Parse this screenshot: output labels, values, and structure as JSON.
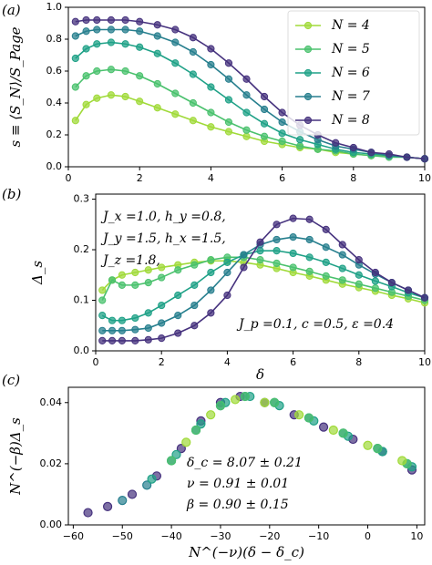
{
  "chart_data": [
    {
      "type": "line",
      "label": "(a)",
      "ylabel": "s ≡ ⟨S_N⟩/S_Page",
      "legend": "upper right",
      "xlim": [
        0,
        10
      ],
      "xticks": [
        0,
        2,
        4,
        6,
        8,
        10
      ],
      "ylim": [
        0,
        1.0
      ],
      "yticks": [
        {
          "value": 0,
          "label": "0.0"
        },
        0.2,
        0.4,
        0.6,
        0.8,
        {
          "value": 1.0,
          "label": "1.0"
        }
      ],
      "x": [
        0.2,
        0.5,
        0.8,
        1.2,
        1.6,
        2.0,
        2.5,
        3.0,
        3.5,
        4.0,
        4.5,
        5.0,
        5.5,
        6.0,
        6.5,
        7.0,
        7.5,
        8.0,
        8.5,
        9.0,
        9.5,
        10.0
      ],
      "series": [
        {
          "name": "N = 4",
          "color": "#a0da39",
          "values": [
            0.29,
            0.39,
            0.43,
            0.45,
            0.44,
            0.41,
            0.37,
            0.33,
            0.29,
            0.25,
            0.22,
            0.19,
            0.16,
            0.14,
            0.12,
            0.11,
            0.09,
            0.08,
            0.07,
            0.07,
            0.06,
            0.05
          ]
        },
        {
          "name": "N = 5",
          "color": "#4ac16d",
          "values": [
            0.5,
            0.57,
            0.6,
            0.61,
            0.6,
            0.57,
            0.52,
            0.46,
            0.4,
            0.34,
            0.28,
            0.23,
            0.19,
            0.16,
            0.13,
            0.11,
            0.1,
            0.08,
            0.07,
            0.06,
            0.06,
            0.05
          ]
        },
        {
          "name": "N = 6",
          "color": "#1fa187",
          "values": [
            0.68,
            0.74,
            0.77,
            0.78,
            0.77,
            0.75,
            0.71,
            0.65,
            0.58,
            0.5,
            0.42,
            0.34,
            0.27,
            0.21,
            0.17,
            0.14,
            0.11,
            0.09,
            0.08,
            0.07,
            0.06,
            0.05
          ]
        },
        {
          "name": "N = 7",
          "color": "#277f8e",
          "values": [
            0.82,
            0.85,
            0.86,
            0.86,
            0.86,
            0.85,
            0.82,
            0.78,
            0.72,
            0.64,
            0.55,
            0.45,
            0.36,
            0.28,
            0.22,
            0.17,
            0.13,
            0.11,
            0.09,
            0.07,
            0.06,
            0.05
          ]
        },
        {
          "name": "N = 8",
          "color": "#46327e",
          "values": [
            0.91,
            0.92,
            0.92,
            0.92,
            0.92,
            0.91,
            0.89,
            0.86,
            0.81,
            0.74,
            0.65,
            0.55,
            0.44,
            0.34,
            0.26,
            0.2,
            0.15,
            0.12,
            0.09,
            0.08,
            0.06,
            0.05
          ]
        }
      ]
    },
    {
      "type": "line",
      "label": "(b)",
      "xlabel": "δ",
      "ylabel": "Δ_s",
      "annotations": [
        "J_x =1.0,   h_y =0.8,",
        "J_y =1.5,   h_x =1.5,",
        "J_z =1.8,",
        "J_p =0.1,   c =0.5,   ε =0.4"
      ],
      "xlim": [
        0,
        10
      ],
      "xticks": [
        0,
        2,
        4,
        6,
        8,
        10
      ],
      "ylim": [
        0,
        0.31
      ],
      "yticks": [
        {
          "value": 0,
          "label": "0.0"
        },
        0.1,
        0.2,
        0.3
      ],
      "x": [
        0.2,
        0.5,
        0.8,
        1.2,
        1.6,
        2.0,
        2.5,
        3.0,
        3.5,
        4.0,
        4.5,
        5.0,
        5.5,
        6.0,
        6.5,
        7.0,
        7.5,
        8.0,
        8.5,
        9.0,
        9.5,
        10.0
      ],
      "series": [
        {
          "color": "#a0da39",
          "values": [
            0.12,
            0.14,
            0.15,
            0.155,
            0.16,
            0.165,
            0.17,
            0.175,
            0.178,
            0.178,
            0.175,
            0.17,
            0.163,
            0.155,
            0.148,
            0.14,
            0.132,
            0.125,
            0.118,
            0.11,
            0.103,
            0.095
          ]
        },
        {
          "color": "#4ac16d",
          "values": [
            0.1,
            0.14,
            0.13,
            0.13,
            0.135,
            0.145,
            0.16,
            0.17,
            0.18,
            0.185,
            0.185,
            0.18,
            0.173,
            0.165,
            0.157,
            0.148,
            0.14,
            0.132,
            0.124,
            0.116,
            0.108,
            0.1
          ]
        },
        {
          "color": "#1fa187",
          "values": [
            0.07,
            0.06,
            0.06,
            0.065,
            0.075,
            0.09,
            0.11,
            0.13,
            0.155,
            0.175,
            0.19,
            0.198,
            0.198,
            0.193,
            0.185,
            0.175,
            0.163,
            0.15,
            0.138,
            0.127,
            0.115,
            0.105
          ]
        },
        {
          "color": "#277f8e",
          "values": [
            0.04,
            0.04,
            0.04,
            0.042,
            0.045,
            0.055,
            0.07,
            0.09,
            0.12,
            0.155,
            0.19,
            0.21,
            0.22,
            0.225,
            0.22,
            0.205,
            0.19,
            0.17,
            0.152,
            0.135,
            0.12,
            0.105
          ]
        },
        {
          "color": "#46327e",
          "values": [
            0.02,
            0.02,
            0.02,
            0.02,
            0.022,
            0.025,
            0.035,
            0.05,
            0.075,
            0.11,
            0.165,
            0.215,
            0.25,
            0.262,
            0.26,
            0.24,
            0.21,
            0.18,
            0.155,
            0.135,
            0.12,
            0.105
          ]
        }
      ]
    },
    {
      "type": "scatter",
      "label": "(c)",
      "xlabel": "N^(−ν)(δ − δ_c)",
      "ylabel": "N^(−β)Δ_s",
      "annotations": [
        "δ_c = 8.07 ± 0.21",
        "ν = 0.91 ± 0.01",
        "β = 0.90 ± 0.15"
      ],
      "xlim": [
        -61,
        11.6
      ],
      "xticks": [
        {
          "value": -60,
          "label": "−60"
        },
        {
          "value": -50,
          "label": "−50"
        },
        {
          "value": -40,
          "label": "−40"
        },
        {
          "value": -30,
          "label": "−30"
        },
        {
          "value": -20,
          "label": "−20"
        },
        {
          "value": -10,
          "label": "−10"
        },
        0,
        10
      ],
      "ylim": [
        0,
        0.045
      ],
      "yticks": [
        {
          "value": 0,
          "label": "0.00"
        },
        {
          "value": 0.02,
          "label": "0.02"
        },
        {
          "value": 0.04,
          "label": "0.04"
        }
      ],
      "series": [
        {
          "color": "#46327e",
          "x": [
            -57,
            -53,
            -48,
            -43,
            -38,
            -34,
            -30,
            -26,
            -21,
            -15,
            -9,
            -3,
            3,
            9
          ],
          "values": [
            0.004,
            0.006,
            0.01,
            0.016,
            0.025,
            0.034,
            0.04,
            0.042,
            0.04,
            0.036,
            0.032,
            0.028,
            0.024,
            0.018
          ]
        },
        {
          "color": "#277f8e",
          "x": [
            -50,
            -45,
            -40,
            -35,
            -30,
            -25,
            -19,
            -12,
            -5,
            2,
            8
          ],
          "values": [
            0.008,
            0.013,
            0.021,
            0.031,
            0.039,
            0.042,
            0.04,
            0.035,
            0.03,
            0.025,
            0.02
          ]
        },
        {
          "color": "#1fa187",
          "x": [
            -44,
            -39,
            -34,
            -29,
            -24,
            -18,
            -11,
            -4,
            3,
            9
          ],
          "values": [
            0.015,
            0.023,
            0.033,
            0.04,
            0.042,
            0.039,
            0.034,
            0.029,
            0.024,
            0.019
          ]
        },
        {
          "color": "#4ac16d",
          "x": [
            -40,
            -35,
            -30,
            -25,
            -19,
            -12,
            -5,
            2,
            8
          ],
          "values": [
            0.021,
            0.031,
            0.039,
            0.042,
            0.04,
            0.035,
            0.03,
            0.025,
            0.02
          ]
        },
        {
          "color": "#a0da39",
          "x": [
            -37,
            -32,
            -27,
            -21,
            -14,
            -7,
            0,
            7
          ],
          "values": [
            0.027,
            0.036,
            0.041,
            0.04,
            0.036,
            0.031,
            0.026,
            0.021
          ]
        }
      ]
    }
  ]
}
